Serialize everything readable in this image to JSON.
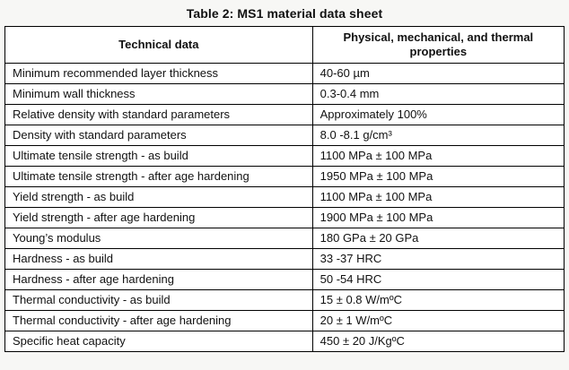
{
  "title": "Table 2: MS1 material data sheet",
  "table": {
    "headers": [
      "Technical data",
      "Physical, mechanical, and thermal properties"
    ],
    "rows": [
      [
        "Minimum recommended layer thickness",
        "40-60 µm"
      ],
      [
        "Minimum wall thickness",
        "0.3-0.4 mm"
      ],
      [
        "Relative density with standard parameters",
        "Approximately 100%"
      ],
      [
        "Density with standard parameters",
        "8.0 -8.1 g/cm³"
      ],
      [
        "Ultimate tensile strength - as build",
        "1100 MPa ± 100 MPa"
      ],
      [
        "Ultimate tensile strength - after age hardening",
        "1950 MPa ± 100 MPa"
      ],
      [
        "Yield strength - as build",
        "1100 MPa ± 100 MPa"
      ],
      [
        "Yield strength - after age hardening",
        "1900 MPa ± 100 MPa"
      ],
      [
        "Young’s modulus",
        "180 GPa ± 20 GPa"
      ],
      [
        "Hardness - as build",
        "33 -37 HRC"
      ],
      [
        "Hardness - after age hardening",
        "50 -54 HRC"
      ],
      [
        "Thermal conductivity - as build",
        "15 ± 0.8 W/mºC"
      ],
      [
        "Thermal conductivity - after age hardening",
        "20 ± 1 W/mºC"
      ],
      [
        "Specific heat capacity",
        "450 ± 20 J/KgºC"
      ]
    ]
  }
}
